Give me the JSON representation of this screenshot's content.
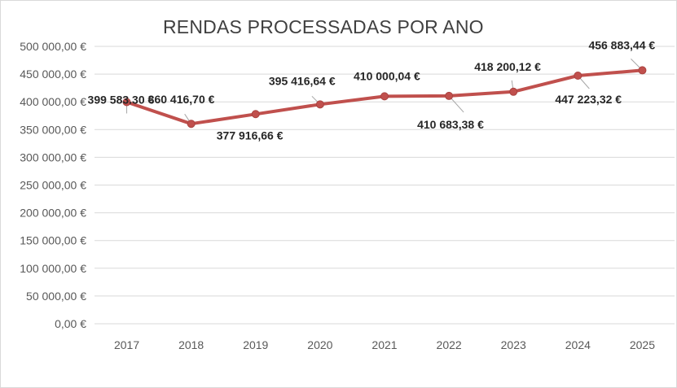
{
  "chart_data": {
    "type": "line",
    "title": "RENDAS PROCESSADAS POR ANO",
    "xlabel": "",
    "ylabel": "",
    "categories": [
      "2017",
      "2018",
      "2019",
      "2020",
      "2021",
      "2022",
      "2023",
      "2024",
      "2025"
    ],
    "values": [
      399583.3,
      360416.7,
      377916.66,
      395416.64,
      410000.04,
      410683.38,
      418200.12,
      447223.32,
      456883.44
    ],
    "data_labels": [
      "399 583.30 €",
      "360 416,70 €",
      "377 916,66 €",
      "395 416,64 €",
      "410 000,04 €",
      "410 683,38 €",
      "418 200,12 €",
      "447 223,32 €",
      "456 883,44 €"
    ],
    "ylim": [
      0,
      500000
    ],
    "y_tick_values": [
      0,
      50000,
      100000,
      150000,
      200000,
      250000,
      300000,
      350000,
      400000,
      450000,
      500000
    ],
    "y_tick_labels": [
      "0,00 €",
      "50 000,00 €",
      "100 000,00 €",
      "150 000,00 €",
      "200 000,00 €",
      "250 000,00 €",
      "300 000,00 €",
      "350 000,00 €",
      "400 000,00 €",
      "450 000,00 €",
      "500 000,00 €"
    ],
    "grid": true,
    "legend": "none",
    "colors": {
      "line": "#c0504d",
      "grid": "#d9d9d9",
      "leader": "#a6a6a6"
    }
  }
}
